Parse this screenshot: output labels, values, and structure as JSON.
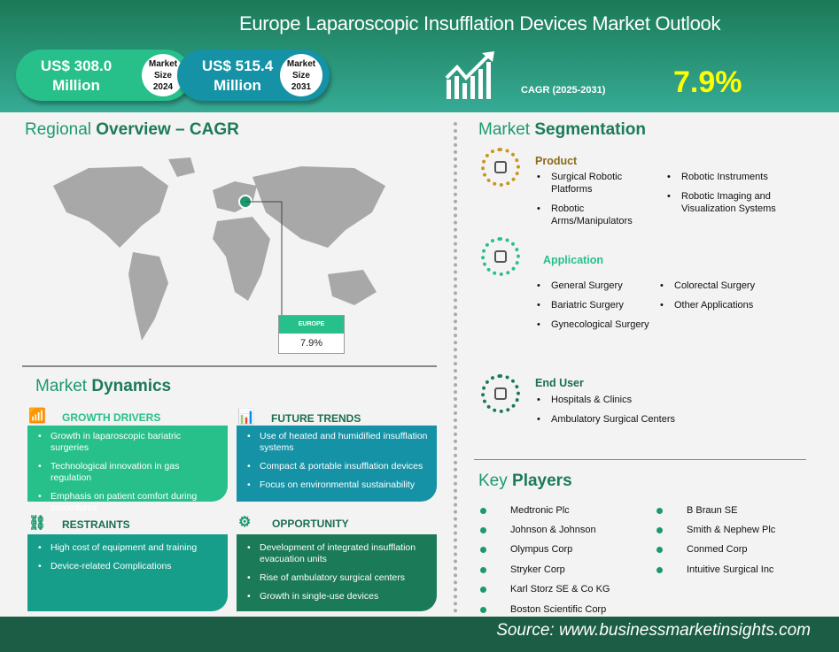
{
  "header": {
    "title": "Europe Laparoscopic Insufflation Devices Market Outlook",
    "size_2024": {
      "value": "US$ 308.0",
      "unit": "Million",
      "label1": "Market",
      "label2": "Size",
      "year": "2024"
    },
    "size_2031": {
      "value": "US$ 515.4",
      "unit": "Million",
      "label1": "Market",
      "label2": "Size",
      "year": "2031"
    },
    "cagr_label": "CAGR (2025-2031)",
    "cagr_value": "7.9%",
    "colors": {
      "pill_2024": "#27c08a",
      "pill_2031": "#1592a6",
      "cagr": "#ffff00"
    }
  },
  "regional": {
    "title_a": "Regional",
    "title_b": "Overview – CAGR",
    "region": "EUROPE",
    "value": "7.9%"
  },
  "dynamics": {
    "title_a": "Market",
    "title_b": "Dynamics",
    "drivers": {
      "title": "GROWTH DRIVERS",
      "items": [
        "Growth in laparoscopic bariatric surgeries",
        "Technological innovation in gas regulation",
        "Emphasis on patient comfort during procedures"
      ]
    },
    "trends": {
      "title": "FUTURE TRENDS",
      "items": [
        "Use of heated and humidified insufflation systems",
        "Compact & portable insufflation devices",
        "Focus on environmental sustainability"
      ]
    },
    "restraints": {
      "title": "RESTRAINTS",
      "items": [
        "High cost of equipment and training",
        "Device-related Complications"
      ]
    },
    "opportunity": {
      "title": "OPPORTUNITY",
      "items": [
        "Development of integrated insufflation evacuation units",
        "Rise of ambulatory surgical centers",
        "Growth in single-use devices"
      ]
    }
  },
  "segmentation": {
    "title_a": "Market",
    "title_b": "Segmentation",
    "product": {
      "title": "Product",
      "items": [
        "Surgical Robotic Platforms",
        "Robotic Arms/Manipulators",
        "Robotic Instruments",
        "Robotic Imaging and Visualization Systems"
      ]
    },
    "application": {
      "title": "Application",
      "items": [
        "General Surgery",
        "Bariatric Surgery",
        "Gynecological Surgery",
        "Colorectal Surgery",
        "Other Applications"
      ]
    },
    "end_user": {
      "title": "End User",
      "items": [
        "Hospitals & Clinics",
        "Ambulatory Surgical Centers"
      ]
    }
  },
  "players": {
    "title_a": "Key",
    "title_b": "Players",
    "items": [
      "Medtronic Plc",
      "Johnson & Johnson",
      "Olympus Corp",
      "Stryker Corp",
      "Karl Storz SE & Co KG",
      "Boston Scientific Corp",
      "B Braun SE",
      "Smith & Nephew Plc",
      "Conmed Corp",
      "Intuitive Surgical Inc"
    ]
  },
  "footer": {
    "source": "Source: www.businessmarketinsights.com"
  }
}
